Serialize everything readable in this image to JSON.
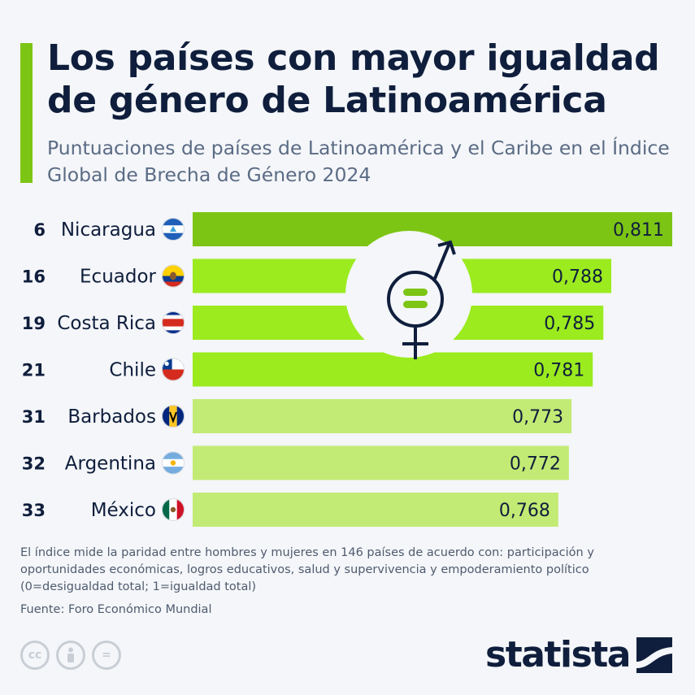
{
  "title": "Los países con mayor igualdad de género de Latinoamérica",
  "subtitle": "Puntuaciones de países de Latinoamérica y el Caribe en el Índice Global de Brecha de Género 2024",
  "chart_data": {
    "type": "bar",
    "orientation": "horizontal",
    "categories": [
      "Nicaragua",
      "Ecuador",
      "Costa Rica",
      "Chile",
      "Barbados",
      "Argentina",
      "México"
    ],
    "ranks": [
      "6",
      "16",
      "19",
      "21",
      "31",
      "32",
      "33"
    ],
    "values": [
      0.811,
      0.788,
      0.785,
      0.781,
      0.773,
      0.772,
      0.768
    ],
    "value_labels": [
      "0,811",
      "0,788",
      "0,785",
      "0,781",
      "0,773",
      "0,772",
      "0,768"
    ],
    "bar_colors": [
      "#7dc514",
      "#9beb1e",
      "#9beb1e",
      "#9beb1e",
      "#c2eb75",
      "#c2eb75",
      "#c2eb75"
    ],
    "title": "Los países con mayor igualdad de género de Latinoamérica",
    "xlabel": "",
    "ylabel": "",
    "grid": false,
    "legend": "none"
  },
  "icons": [
    "nicaragua-flag-icon",
    "ecuador-flag-icon",
    "costa-rica-flag-icon",
    "chile-flag-icon",
    "barbados-flag-icon",
    "argentina-flag-icon",
    "mexico-flag-icon",
    "gender-equality-icon",
    "cc-icon",
    "attribution-icon",
    "no-derivatives-icon",
    "statista-logo-icon"
  ],
  "footer": {
    "note": "El índice mide la paridad entre hombres y mujeres en 146 países de acuerdo con: participación y oportunidades económicas, logros educativos, salud y supervivencia y empoderamiento político (0=desigualdad total; 1=igualdad total)",
    "source": "Fuente: Foro Económico Mundial",
    "brand": "statista",
    "cc_label": "cc",
    "nd_label": "="
  },
  "colors": {
    "accent": "#7dc514",
    "title": "#0f1e3c",
    "subtitle": "#5b6b85",
    "background": "#f4f6f9"
  }
}
